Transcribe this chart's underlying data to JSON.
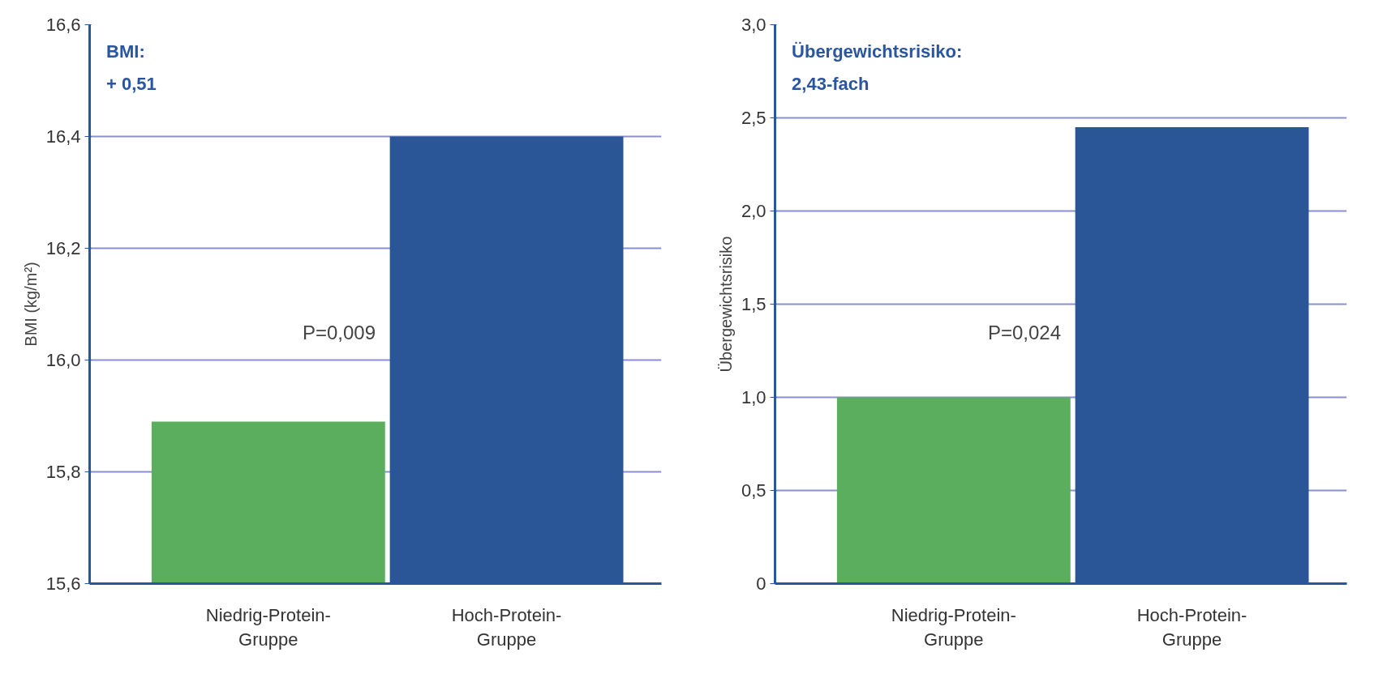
{
  "chart_data": [
    {
      "type": "bar",
      "categories": [
        "Niedrig-Protein-\nGruppe",
        "Hoch-Protein-\nGruppe"
      ],
      "values": [
        15.89,
        16.4
      ],
      "colors": [
        "#5aae5e",
        "#2a5597"
      ],
      "ylabel": "BMI (kg/m²)",
      "ylim": [
        15.6,
        16.6
      ],
      "yticks": [
        {
          "value": 15.6,
          "label": "15,6"
        },
        {
          "value": 15.8,
          "label": "15,8"
        },
        {
          "value": 16.0,
          "label": "16,0"
        },
        {
          "value": 16.2,
          "label": "16,2"
        },
        {
          "value": 16.4,
          "label": "16,4"
        },
        {
          "value": 16.6,
          "label": "16,6"
        }
      ],
      "grid": "y",
      "annotations": [
        "BMI:\n+ 0,51",
        "P=0,009"
      ]
    },
    {
      "type": "bar",
      "categories": [
        "Niedrig-Protein-\nGruppe",
        "Hoch-Protein-\nGruppe"
      ],
      "values": [
        1.0,
        2.45
      ],
      "colors": [
        "#5aae5e",
        "#2a5597"
      ],
      "ylabel": "Übergewichtsrisiko",
      "ylim": [
        0,
        3.0
      ],
      "yticks": [
        0,
        {
          "value": 0.5,
          "label": "0,5"
        },
        {
          "value": 1.0,
          "label": "1,0"
        },
        {
          "value": 1.5,
          "label": "1,5"
        },
        {
          "value": 2.0,
          "label": "2,0"
        },
        {
          "value": 2.5,
          "label": "2,5"
        },
        {
          "value": 3.0,
          "label": "3,0"
        }
      ],
      "grid": "y",
      "annotations": [
        "Übergewichtsrisiko:\n2,43-fach",
        "P=0,024"
      ]
    }
  ]
}
